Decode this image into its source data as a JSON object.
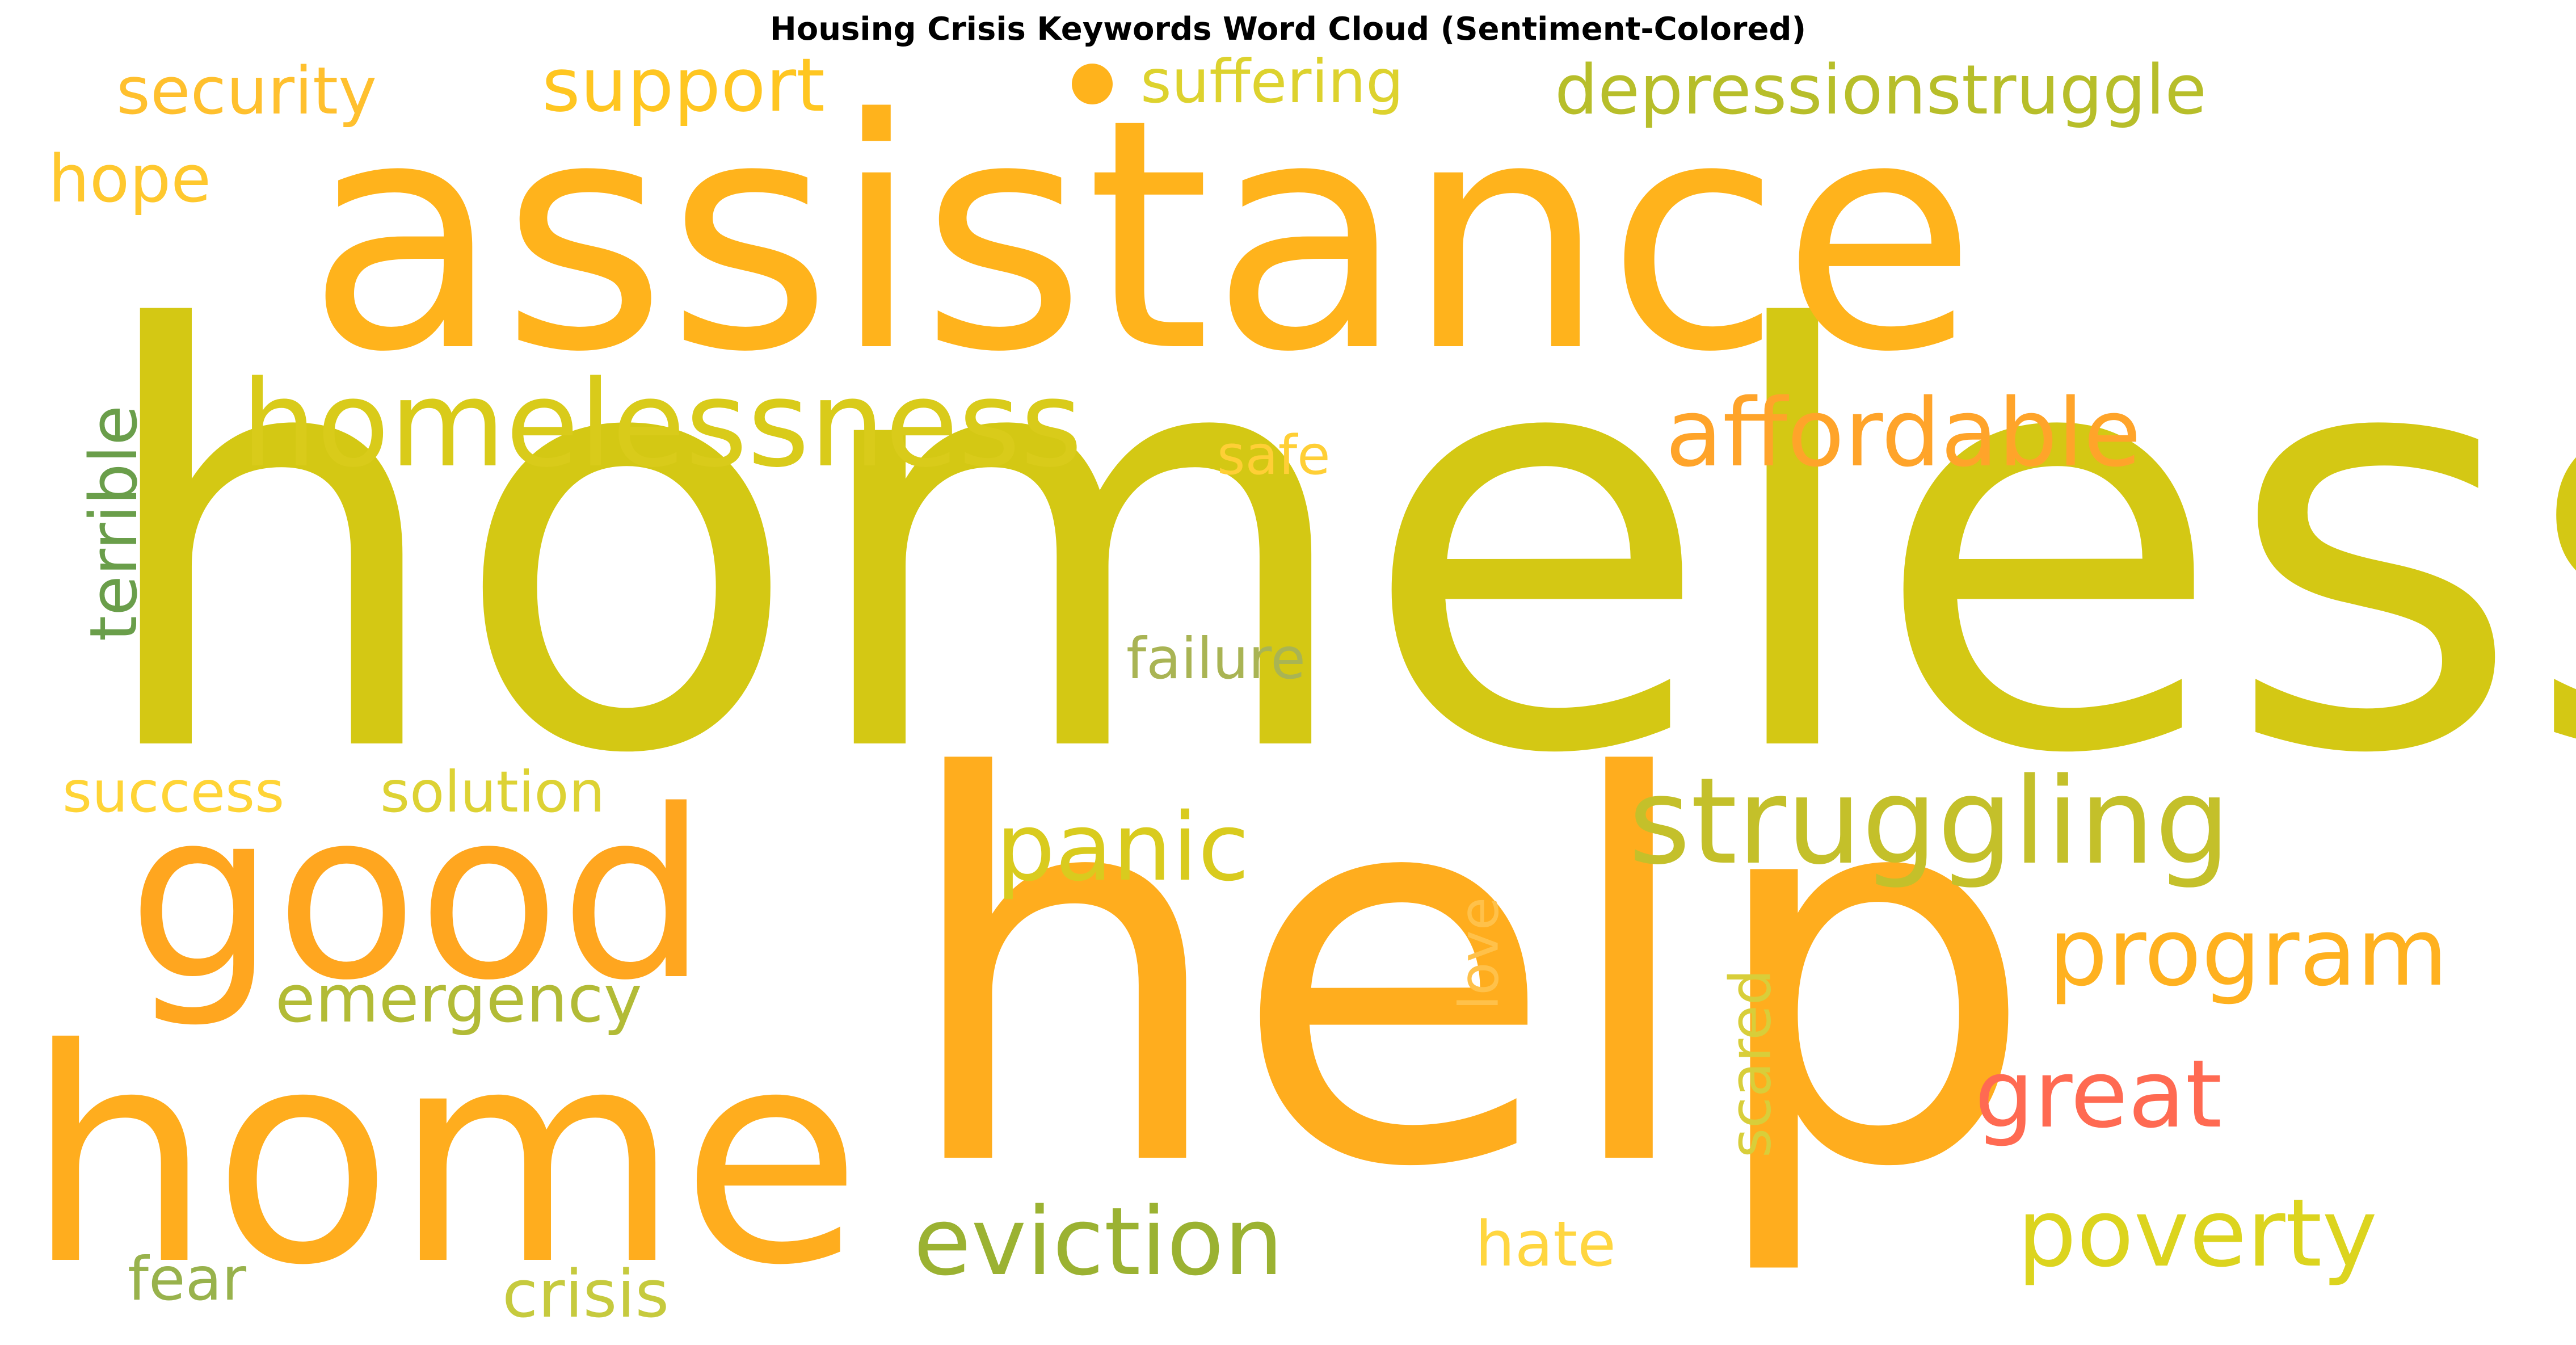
{
  "chart_data": {
    "type": "wordcloud",
    "title": "Housing Crisis Keywords Word Cloud (Sentiment-Colored)",
    "words": [
      {
        "text": "homeless",
        "weight": 1.0,
        "color": "#d4c814",
        "rotate": 0
      },
      {
        "text": "assistance",
        "weight": 0.8,
        "color": "#ffb31c",
        "rotate": 0
      },
      {
        "text": "help",
        "weight": 0.88,
        "color": "#ffad1e",
        "rotate": 0
      },
      {
        "text": "good",
        "weight": 0.52,
        "color": "#ffa61f",
        "rotate": 0
      },
      {
        "text": "home",
        "weight": 0.62,
        "color": "#ffad1e",
        "rotate": 0
      },
      {
        "text": "homelessness",
        "weight": 0.32,
        "color": "#d9cb1a",
        "rotate": 0
      },
      {
        "text": "struggling",
        "weight": 0.32,
        "color": "#c4c02a",
        "rotate": 0
      },
      {
        "text": "affordable",
        "weight": 0.26,
        "color": "#ffa42a",
        "rotate": 0
      },
      {
        "text": "program",
        "weight": 0.26,
        "color": "#ffb11f",
        "rotate": 0
      },
      {
        "text": "great",
        "weight": 0.26,
        "color": "#ff6a52",
        "rotate": 0
      },
      {
        "text": "poverty",
        "weight": 0.26,
        "color": "#dcd41e",
        "rotate": 0
      },
      {
        "text": "eviction",
        "weight": 0.25,
        "color": "#9bb232",
        "rotate": 0
      },
      {
        "text": "panic",
        "weight": 0.24,
        "color": "#d9cb1e",
        "rotate": 0
      },
      {
        "text": "security",
        "weight": 0.16,
        "color": "#ffc02e",
        "rotate": 0
      },
      {
        "text": "support",
        "weight": 0.18,
        "color": "#ffc621",
        "rotate": 0
      },
      {
        "text": "depressionstruggle",
        "weight": 0.17,
        "color": "#b7be2a",
        "rotate": 0
      },
      {
        "text": "suffering",
        "weight": 0.15,
        "color": "#ddd22e",
        "rotate": 0
      },
      {
        "text": "hope",
        "weight": 0.16,
        "color": "#ffc82e",
        "rotate": 0
      },
      {
        "text": "terrible",
        "weight": 0.16,
        "color": "#6a9e4a",
        "rotate": -90
      },
      {
        "text": "safe",
        "weight": 0.13,
        "color": "#ffcf36",
        "rotate": 0
      },
      {
        "text": "failure",
        "weight": 0.14,
        "color": "#a9b454",
        "rotate": 0
      },
      {
        "text": "success",
        "weight": 0.14,
        "color": "#ffd436",
        "rotate": 0
      },
      {
        "text": "solution",
        "weight": 0.14,
        "color": "#ddd234",
        "rotate": 0
      },
      {
        "text": "emergency",
        "weight": 0.16,
        "color": "#b2bb36",
        "rotate": 0
      },
      {
        "text": "love",
        "weight": 0.13,
        "color": "#ffc14a",
        "rotate": -90
      },
      {
        "text": "scared",
        "weight": 0.14,
        "color": "#d8ce3a",
        "rotate": -90
      },
      {
        "text": "hate",
        "weight": 0.15,
        "color": "#ffd640",
        "rotate": 0
      },
      {
        "text": "fear",
        "weight": 0.14,
        "color": "#98b24c",
        "rotate": 0
      },
      {
        "text": "crisis",
        "weight": 0.15,
        "color": "#c6ca3e",
        "rotate": 0
      }
    ],
    "marks": [
      {
        "shape": "dot",
        "color": "#ffb31c"
      }
    ]
  }
}
